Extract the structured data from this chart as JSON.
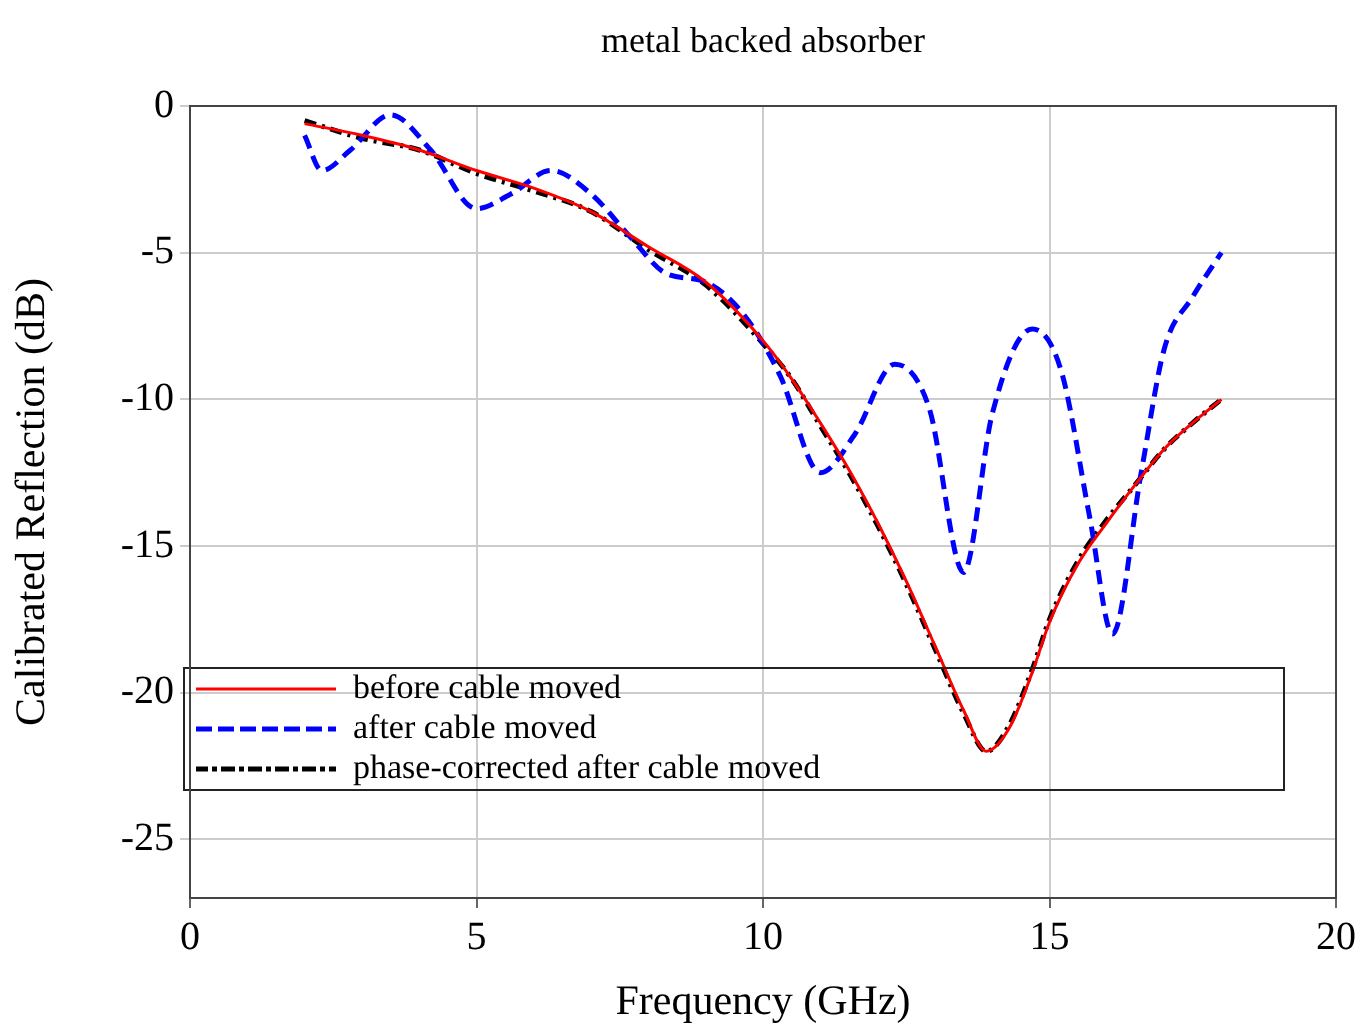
{
  "chart_data": {
    "type": "line",
    "title": "metal backed absorber",
    "xlabel": "Frequency (GHz)",
    "ylabel": "Calibrated Reflection (dB)",
    "xlim": [
      0,
      20
    ],
    "ylim": [
      -27,
      0
    ],
    "xticks": [
      0,
      5,
      10,
      15,
      20
    ],
    "yticks": [
      0,
      -5,
      -10,
      -15,
      -20,
      -25
    ],
    "grid": true,
    "legend": "bottom",
    "marker": "none",
    "series": [
      {
        "name": "before cable moved",
        "color": "#ff0000",
        "line_style": "solid",
        "x": [
          2,
          3,
          4,
          5,
          6,
          7,
          8,
          9,
          10,
          10.5,
          11,
          11.5,
          12,
          12.5,
          13,
          13.5,
          13.9,
          14.3,
          14.7,
          15,
          15.5,
          16,
          16.5,
          17,
          17.5,
          18
        ],
        "values": [
          -0.6,
          -1.0,
          -1.5,
          -2.2,
          -2.8,
          -3.6,
          -4.8,
          -6.0,
          -8.0,
          -9.3,
          -10.8,
          -12.4,
          -14.2,
          -16.2,
          -18.4,
          -20.6,
          -22.0,
          -21.2,
          -19.3,
          -17.6,
          -15.6,
          -14.2,
          -12.9,
          -11.7,
          -10.8,
          -10.0
        ]
      },
      {
        "name": "after cable moved",
        "color": "#0000ff",
        "line_style": "dashed",
        "x": [
          2,
          2.3,
          2.8,
          3.5,
          4.2,
          5.0,
          5.6,
          6.3,
          7.0,
          7.7,
          8.3,
          9.0,
          9.7,
          10.3,
          11.0,
          11.6,
          12.3,
          12.9,
          13.5,
          14.0,
          14.7,
          15.2,
          15.7,
          16.1,
          16.6,
          17.0,
          17.5,
          18
        ],
        "values": [
          -1.0,
          -2.2,
          -1.5,
          -0.3,
          -1.5,
          -3.5,
          -3.0,
          -2.2,
          -3.0,
          -4.5,
          -5.7,
          -6.0,
          -7.2,
          -9.2,
          -12.5,
          -11.2,
          -8.8,
          -10.3,
          -15.9,
          -10.5,
          -7.6,
          -9.0,
          -14.0,
          -18.0,
          -12.5,
          -8.3,
          -6.5,
          -5.0
        ]
      },
      {
        "name": "phase-corrected after cable moved",
        "color": "#000000",
        "line_style": "dotted",
        "x": [
          2,
          3,
          4,
          5,
          6,
          7,
          8,
          9,
          10,
          10.5,
          11,
          11.5,
          12,
          12.5,
          13,
          13.5,
          13.9,
          14.3,
          14.7,
          15,
          15.5,
          16,
          16.5,
          17,
          17.5,
          18
        ],
        "values": [
          -0.5,
          -1.1,
          -1.5,
          -2.3,
          -2.9,
          -3.6,
          -4.9,
          -6.1,
          -8.1,
          -9.3,
          -10.9,
          -12.5,
          -14.3,
          -16.3,
          -18.5,
          -20.7,
          -22.0,
          -21.1,
          -19.2,
          -17.5,
          -15.5,
          -14.1,
          -12.9,
          -11.7,
          -10.8,
          -10.0
        ]
      }
    ]
  }
}
